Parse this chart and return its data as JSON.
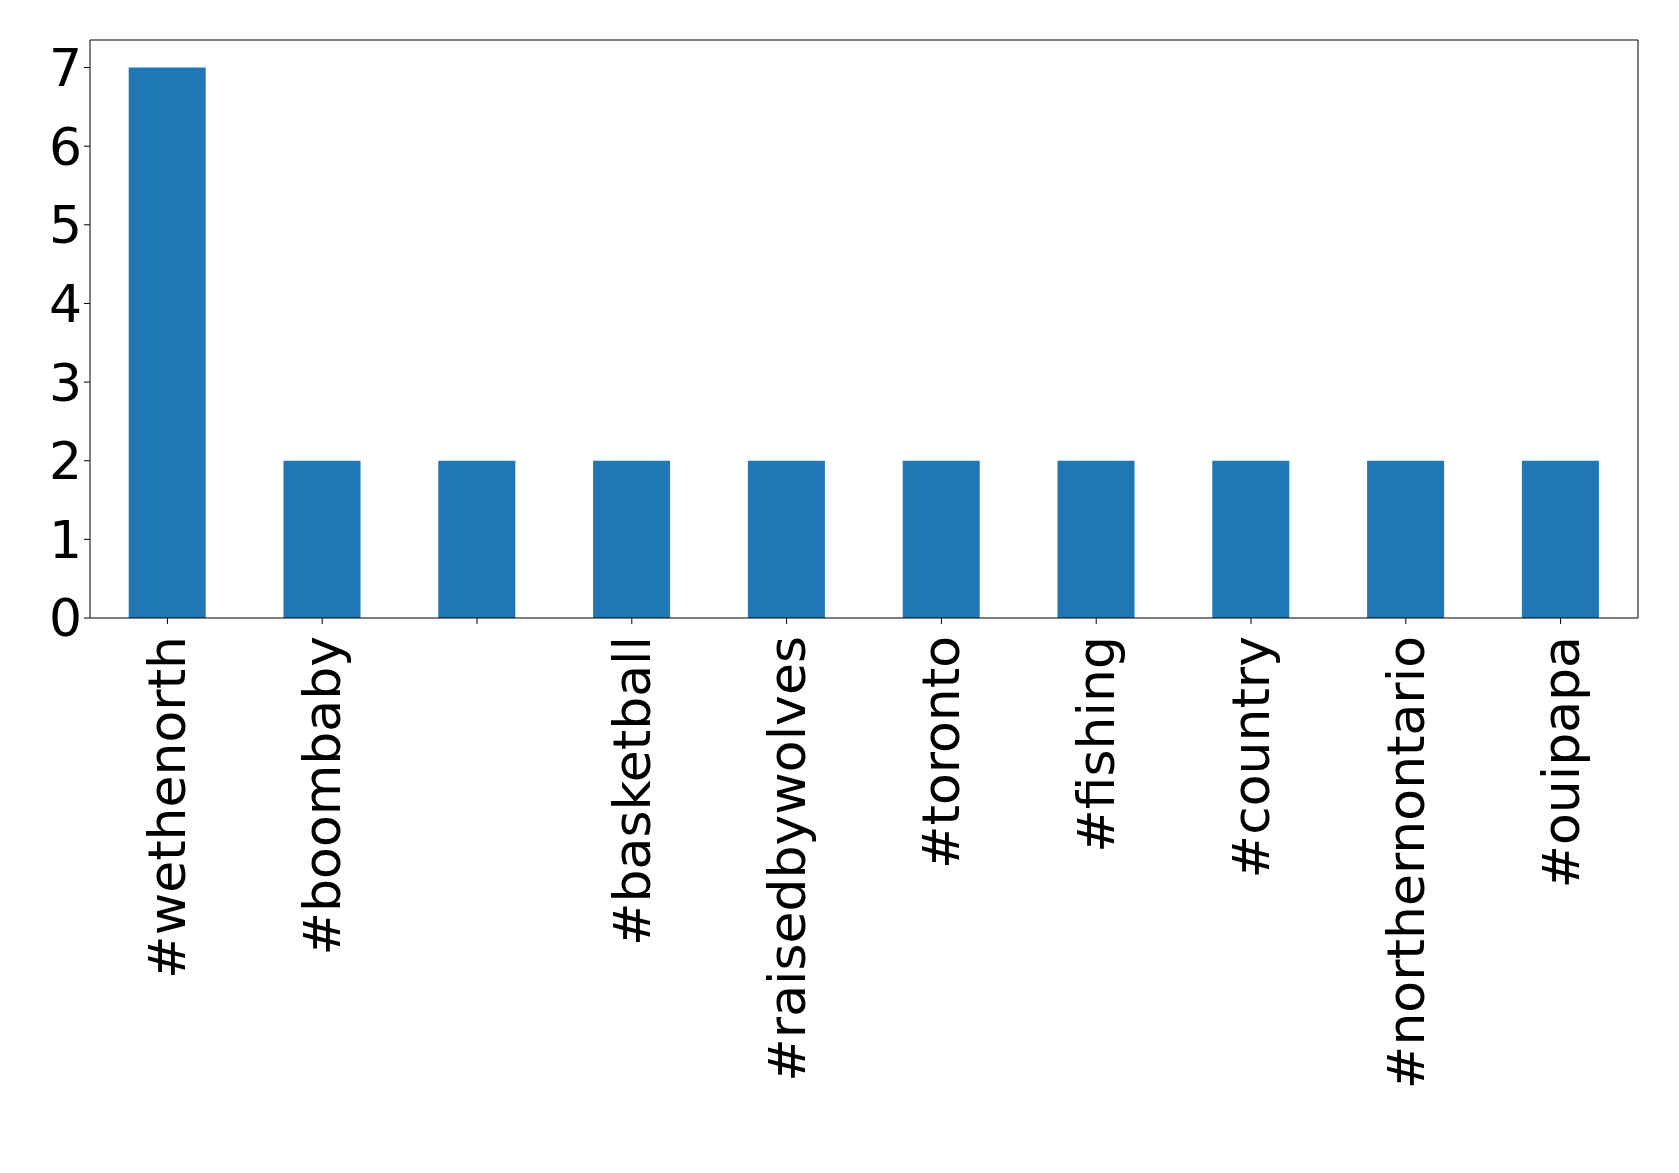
{
  "chart_data": {
    "type": "bar",
    "categories": [
      "#wethenorth",
      "#boombaby",
      null,
      "#basketball",
      "#raisedbywolves",
      "#toronto",
      "#fishing",
      "#country",
      "#northernontario",
      "#ouipapa"
    ],
    "values": [
      7,
      2,
      2,
      2,
      2,
      2,
      2,
      2,
      2,
      2
    ],
    "color": "#1f77b4",
    "ylim": [
      0,
      7.35
    ],
    "yticks": [
      0,
      1,
      2,
      3,
      4,
      5,
      6,
      7
    ],
    "grid": false,
    "legend": false
  }
}
